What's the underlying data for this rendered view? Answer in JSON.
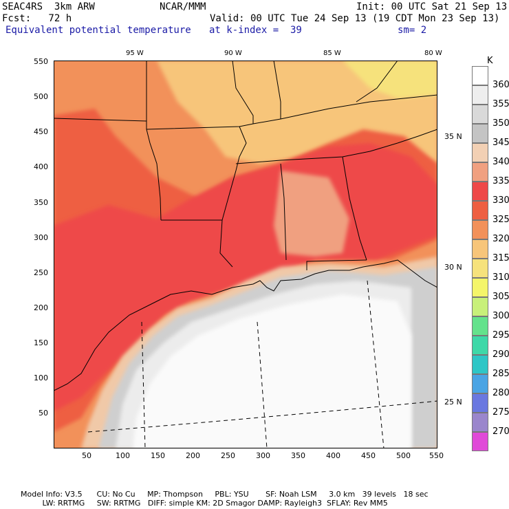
{
  "header": {
    "model": "SEAC4RS  3km ARW",
    "center": "NCAR/MMM",
    "init": "Init: 00 UTC Sat 21 Sep 13",
    "fcst": "Fcst:   72 h",
    "valid": "Valid: 00 UTC Tue 24 Sep 13 (19 CDT Mon 23 Sep 13)",
    "field": "Equivalent potential temperature",
    "level": "at k-index =  39",
    "smooth": "sm= 2"
  },
  "axes": {
    "x_ticks": [
      "50",
      "100",
      "150",
      "200",
      "250",
      "300",
      "350",
      "400",
      "450",
      "500",
      "550"
    ],
    "y_ticks": [
      "550",
      "500",
      "450",
      "400",
      "350",
      "300",
      "250",
      "200",
      "150",
      "100",
      "50"
    ],
    "lon_labels": [
      "95 W",
      "90 W",
      "85 W",
      "80 W"
    ],
    "lat_labels": [
      "35 N",
      "30 N",
      "25 N"
    ]
  },
  "colorbar": {
    "unit": "K",
    "levels": [
      {
        "value": "360",
        "color": "#ffffff"
      },
      {
        "value": "355",
        "color": "#eeeeee"
      },
      {
        "value": "350",
        "color": "#d9d9d9"
      },
      {
        "value": "345",
        "color": "#c4c4c4"
      },
      {
        "value": "340",
        "color": "#f2d0b4"
      },
      {
        "value": "335",
        "color": "#f0a080"
      },
      {
        "value": "330",
        "color": "#ee4848"
      },
      {
        "value": "325",
        "color": "#ee5f42"
      },
      {
        "value": "320",
        "color": "#f2915a"
      },
      {
        "value": "315",
        "color": "#f7c57a"
      },
      {
        "value": "310",
        "color": "#f6e27c"
      },
      {
        "value": "305",
        "color": "#f4f56a"
      },
      {
        "value": "300",
        "color": "#c8f07a"
      },
      {
        "value": "295",
        "color": "#64e28c"
      },
      {
        "value": "290",
        "color": "#3ed8a8"
      },
      {
        "value": "285",
        "color": "#2ec6c6"
      },
      {
        "value": "280",
        "color": "#4aa4e4"
      },
      {
        "value": "275",
        "color": "#6a78e0"
      },
      {
        "value": "270",
        "color": "#9a86cc"
      },
      {
        "value": "",
        "color": "#e04ad8"
      }
    ]
  },
  "footer": {
    "line1": "Model Info: V3.5      CU: No Cu     MP: Thompson     PBL: YSU       SF: Noah LSM     3.0 km   39 levels   18 sec",
    "line2": "         LW: RRTMG     SW: RRTMG   DIFF: simple KM: 2D Smagor DAMP: Rayleigh3  SFLAY: Rev MM5"
  },
  "colors": {
    "border": "#000000",
    "gulf_white": "#fafafa",
    "gulf_light": "#ececec",
    "coast_gray": "#cfcfcf",
    "band_tan": "#f0c9a8",
    "red_core": "#ee4848",
    "orange": "#f2915a",
    "light_orange": "#f7c57a",
    "yellow_north": "#f6e27c"
  }
}
